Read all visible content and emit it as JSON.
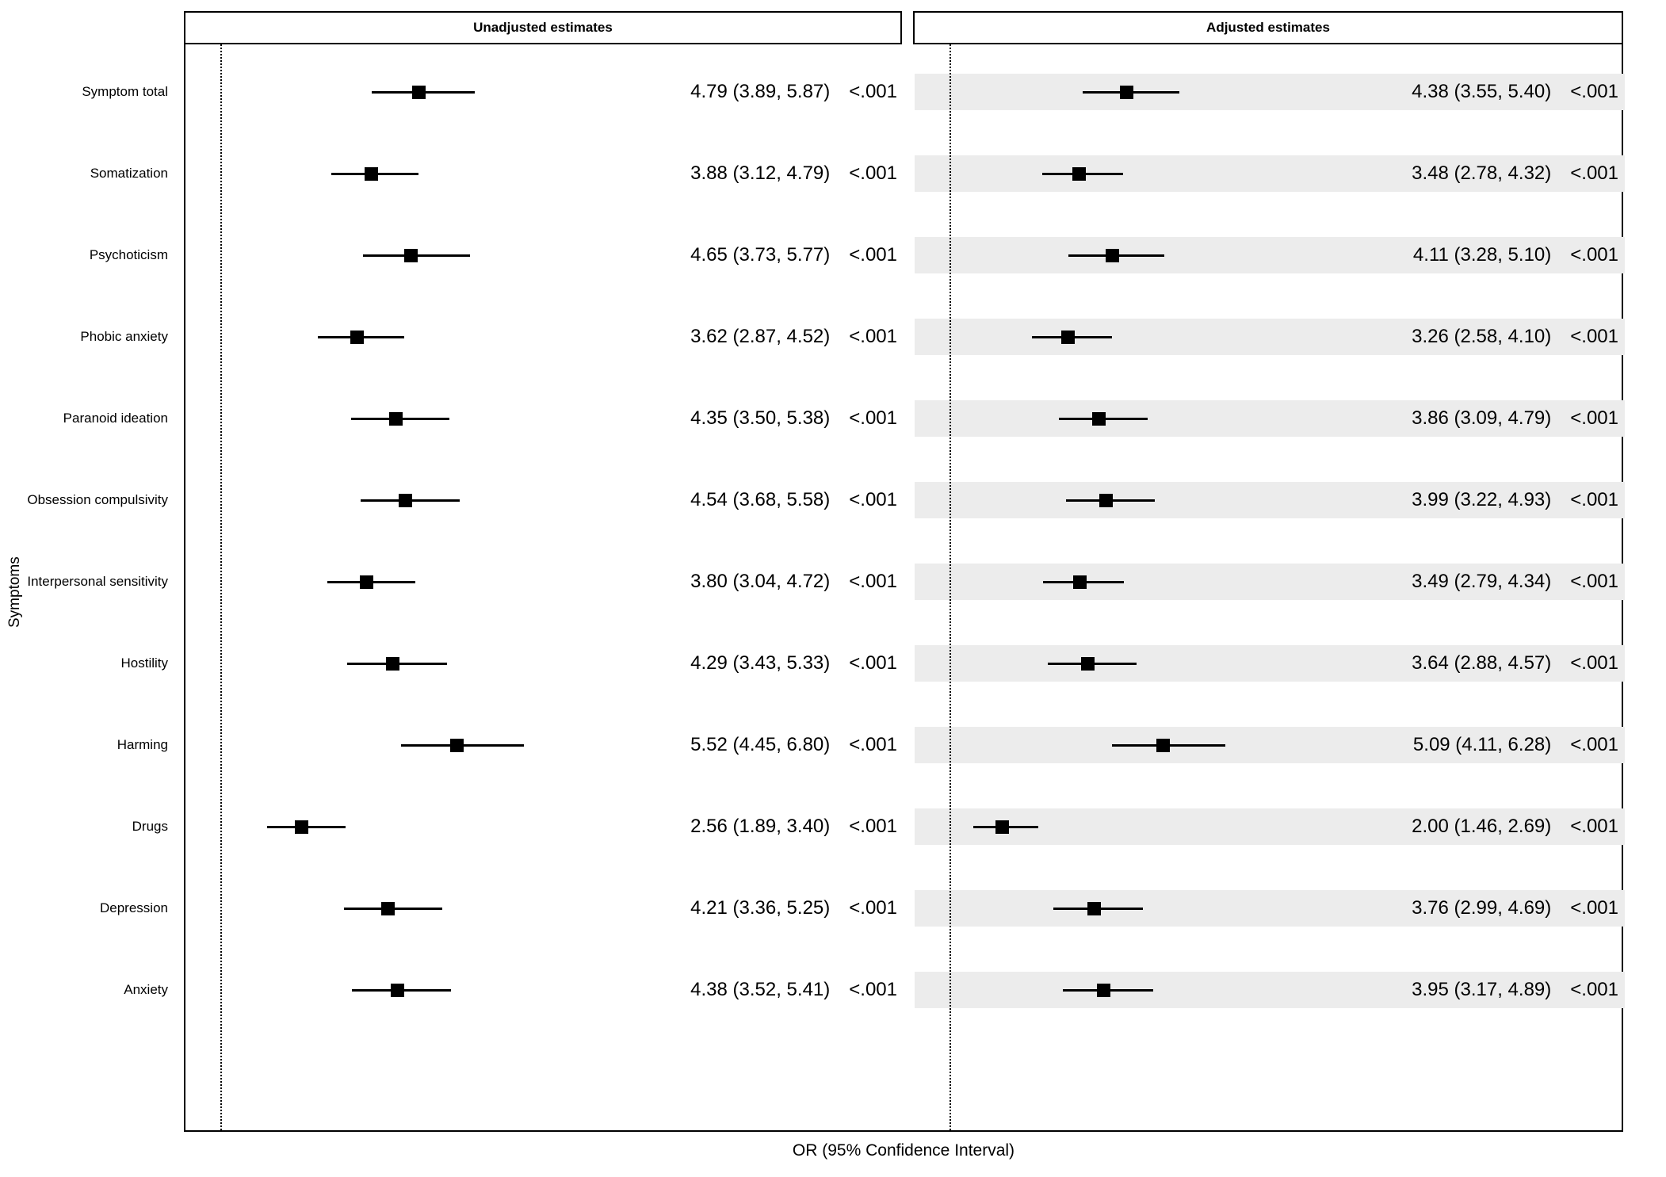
{
  "chart_data": {
    "type": "scatter",
    "subtype": "forest-plot",
    "title": "",
    "xlabel": "OR (95% Confidence Interval)",
    "ylabel": "Symptoms",
    "reference_line": 1,
    "xlim": [
      0.4,
      8.0
    ],
    "grid": false,
    "legend": "none",
    "categories": [
      "Symptom total",
      "Somatization",
      "Psychoticism",
      "Phobic anxiety",
      "Paranoid ideation",
      "Obsession compulsivity",
      "Interpersonal sensitivity",
      "Hostility",
      "Harming",
      "Drugs",
      "Depression",
      "Anxiety"
    ],
    "panels": [
      {
        "label": "Unadjusted estimates",
        "shaded": false,
        "rows": [
          {
            "symptom": "Symptom total",
            "est": 4.79,
            "lo": 3.89,
            "hi": 5.87,
            "text": "4.79 (3.89, 5.87)",
            "p": "<.001"
          },
          {
            "symptom": "Somatization",
            "est": 3.88,
            "lo": 3.12,
            "hi": 4.79,
            "text": "3.88 (3.12, 4.79)",
            "p": "<.001"
          },
          {
            "symptom": "Psychoticism",
            "est": 4.65,
            "lo": 3.73,
            "hi": 5.77,
            "text": "4.65 (3.73, 5.77)",
            "p": "<.001"
          },
          {
            "symptom": "Phobic anxiety",
            "est": 3.62,
            "lo": 2.87,
            "hi": 4.52,
            "text": "3.62 (2.87, 4.52)",
            "p": "<.001"
          },
          {
            "symptom": "Paranoid ideation",
            "est": 4.35,
            "lo": 3.5,
            "hi": 5.38,
            "text": "4.35 (3.50, 5.38)",
            "p": "<.001"
          },
          {
            "symptom": "Obsession compulsivity",
            "est": 4.54,
            "lo": 3.68,
            "hi": 5.58,
            "text": "4.54 (3.68, 5.58)",
            "p": "<.001"
          },
          {
            "symptom": "Interpersonal sensitivity",
            "est": 3.8,
            "lo": 3.04,
            "hi": 4.72,
            "text": "3.80 (3.04, 4.72)",
            "p": "<.001"
          },
          {
            "symptom": "Hostility",
            "est": 4.29,
            "lo": 3.43,
            "hi": 5.33,
            "text": "4.29 (3.43, 5.33)",
            "p": "<.001"
          },
          {
            "symptom": "Harming",
            "est": 5.52,
            "lo": 4.45,
            "hi": 6.8,
            "text": "5.52 (4.45, 6.80)",
            "p": "<.001"
          },
          {
            "symptom": "Drugs",
            "est": 2.56,
            "lo": 1.89,
            "hi": 3.4,
            "text": "2.56 (1.89, 3.40)",
            "p": "<.001"
          },
          {
            "symptom": "Depression",
            "est": 4.21,
            "lo": 3.36,
            "hi": 5.25,
            "text": "4.21 (3.36, 5.25)",
            "p": "<.001"
          },
          {
            "symptom": "Anxiety",
            "est": 4.38,
            "lo": 3.52,
            "hi": 5.41,
            "text": "4.38 (3.52, 5.41)",
            "p": "<.001"
          }
        ]
      },
      {
        "label": "Adjusted estimates",
        "shaded": true,
        "rows": [
          {
            "symptom": "Symptom total",
            "est": 4.38,
            "lo": 3.55,
            "hi": 5.4,
            "text": "4.38 (3.55, 5.40)",
            "p": "<.001"
          },
          {
            "symptom": "Somatization",
            "est": 3.48,
            "lo": 2.78,
            "hi": 4.32,
            "text": "3.48 (2.78, 4.32)",
            "p": "<.001"
          },
          {
            "symptom": "Psychoticism",
            "est": 4.11,
            "lo": 3.28,
            "hi": 5.1,
            "text": "4.11 (3.28, 5.10)",
            "p": "<.001"
          },
          {
            "symptom": "Phobic anxiety",
            "est": 3.26,
            "lo": 2.58,
            "hi": 4.1,
            "text": "3.26 (2.58, 4.10)",
            "p": "<.001"
          },
          {
            "symptom": "Paranoid ideation",
            "est": 3.86,
            "lo": 3.09,
            "hi": 4.79,
            "text": "3.86 (3.09, 4.79)",
            "p": "<.001"
          },
          {
            "symptom": "Obsession compulsivity",
            "est": 3.99,
            "lo": 3.22,
            "hi": 4.93,
            "text": "3.99 (3.22, 4.93)",
            "p": "<.001"
          },
          {
            "symptom": "Interpersonal sensitivity",
            "est": 3.49,
            "lo": 2.79,
            "hi": 4.34,
            "text": "3.49 (2.79, 4.34)",
            "p": "<.001"
          },
          {
            "symptom": "Hostility",
            "est": 3.64,
            "lo": 2.88,
            "hi": 4.57,
            "text": "3.64 (2.88, 4.57)",
            "p": "<.001"
          },
          {
            "symptom": "Harming",
            "est": 5.09,
            "lo": 4.11,
            "hi": 6.28,
            "text": "5.09 (4.11, 6.28)",
            "p": "<.001"
          },
          {
            "symptom": "Drugs",
            "est": 2.0,
            "lo": 1.46,
            "hi": 2.69,
            "text": "2.00 (1.46, 2.69)",
            "p": "<.001"
          },
          {
            "symptom": "Depression",
            "est": 3.76,
            "lo": 2.99,
            "hi": 4.69,
            "text": "3.76 (2.99, 4.69)",
            "p": "<.001"
          },
          {
            "symptom": "Anxiety",
            "est": 3.95,
            "lo": 3.17,
            "hi": 4.89,
            "text": "3.95 (3.17, 4.89)",
            "p": "<.001"
          }
        ]
      }
    ]
  },
  "colors": {
    "marker": "#000000",
    "ci_line": "#000000",
    "row_band": "#ececec",
    "border": "#000000",
    "background": "#ffffff"
  }
}
